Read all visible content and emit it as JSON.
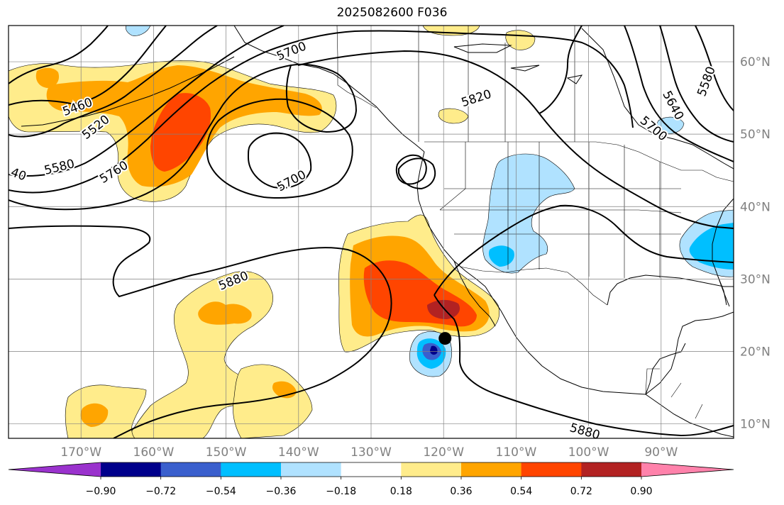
{
  "title": "2025082600 F036",
  "map": {
    "extent": {
      "lon_min": -180,
      "lon_max": -80,
      "lat_min": 8,
      "lat_max": 65
    },
    "lon_ticks": [
      {
        "lon": -170,
        "label": "170°W"
      },
      {
        "lon": -160,
        "label": "160°W"
      },
      {
        "lon": -150,
        "label": "150°W"
      },
      {
        "lon": -140,
        "label": "140°W"
      },
      {
        "lon": -130,
        "label": "130°W"
      },
      {
        "lon": -120,
        "label": "120°W"
      },
      {
        "lon": -110,
        "label": "110°W"
      },
      {
        "lon": -100,
        "label": "100°W"
      },
      {
        "lon": -90,
        "label": "90°W"
      }
    ],
    "lat_ticks": [
      {
        "lat": 10,
        "label": "10°N"
      },
      {
        "lat": 20,
        "label": "20°N"
      },
      {
        "lat": 30,
        "label": "30°N"
      },
      {
        "lat": 40,
        "label": "40°N"
      },
      {
        "lat": 50,
        "label": "50°N"
      },
      {
        "lat": 60,
        "label": "60°N"
      }
    ],
    "contour_labels": [
      {
        "text": "5460",
        "lon": -170.5,
        "lat": 53.8,
        "rot": -20
      },
      {
        "text": "5520",
        "lon": -168.0,
        "lat": 51.0,
        "rot": -38
      },
      {
        "text": "5580",
        "lon": -173.0,
        "lat": 45.5,
        "rot": -14
      },
      {
        "text": "40",
        "lon": -178.6,
        "lat": 44.5,
        "rot": 20
      },
      {
        "text": "5760",
        "lon": -165.5,
        "lat": 44.8,
        "rot": -32
      },
      {
        "text": "5700",
        "lon": -141.0,
        "lat": 61.5,
        "rot": -22
      },
      {
        "text": "5700",
        "lon": -141.0,
        "lat": 43.6,
        "rot": -28
      },
      {
        "text": "5820",
        "lon": -115.5,
        "lat": 55.0,
        "rot": -18
      },
      {
        "text": "5640",
        "lon": -88.3,
        "lat": 54.0,
        "rot": 62
      },
      {
        "text": "5580",
        "lon": -83.8,
        "lat": 57.3,
        "rot": -70
      },
      {
        "text": "5700",
        "lon": -91.0,
        "lat": 50.8,
        "rot": 40
      },
      {
        "text": "5880",
        "lon": -149.0,
        "lat": 29.8,
        "rot": -22
      },
      {
        "text": "5880",
        "lon": -100.5,
        "lat": 9.0,
        "rot": 16
      }
    ],
    "marker": {
      "lon": -119.8,
      "lat": 21.8
    }
  },
  "colorbar": {
    "colors": [
      "#9a32cd",
      "#00008b",
      "#3a5fcd",
      "#00bfff",
      "#b0e2ff",
      "#ffffff",
      "#ffec8b",
      "#ffa500",
      "#ff4500",
      "#b22222",
      "#ff82ab"
    ],
    "tick_labels": [
      "−0.90",
      "−0.72",
      "−0.54",
      "−0.36",
      "−0.18",
      "0.18",
      "0.36",
      "0.54",
      "0.72",
      "0.90"
    ]
  },
  "colors": {
    "axis_label": "#808080",
    "contour": "#000000",
    "grid": "#808080"
  }
}
